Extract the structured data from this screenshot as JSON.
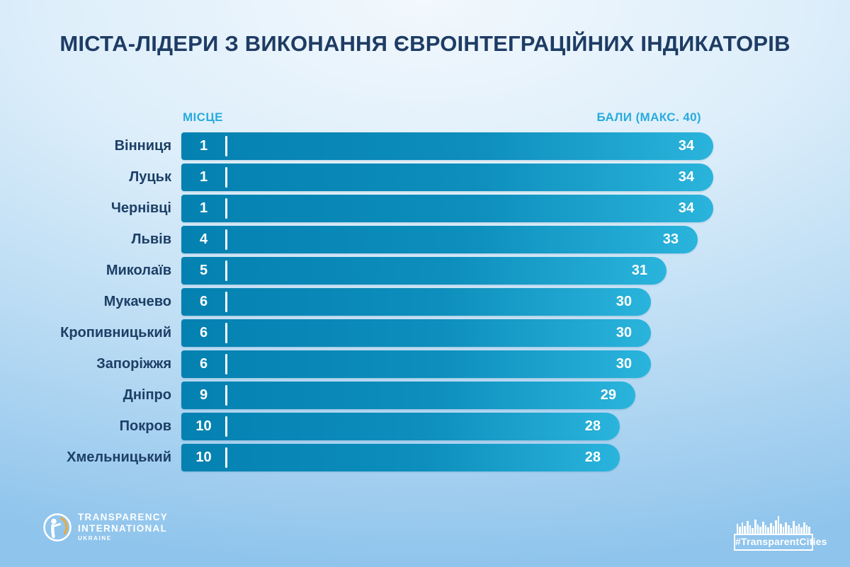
{
  "title": "МІСТА-ЛІДЕРИ З ВИКОНАННЯ ЄВРОІНТЕГРАЦІЙНИХ ІНДИКАТОРІВ",
  "chart_data": {
    "type": "bar",
    "orientation": "horizontal",
    "title": "МІСТА-ЛІДЕРИ З ВИКОНАННЯ ЄВРОІНТЕГРАЦІЙНИХ ІНДИКАТОРІВ",
    "columns": {
      "place": "МІСЦЕ",
      "score": "БАЛИ (МАКС. 40)"
    },
    "max_score": 40,
    "cities": [
      {
        "name": "Вінниця",
        "rank": "1",
        "score": 34
      },
      {
        "name": "Луцьк",
        "rank": "1",
        "score": 34
      },
      {
        "name": "Чернівці",
        "rank": "1",
        "score": 34
      },
      {
        "name": "Львів",
        "rank": "4",
        "score": 33
      },
      {
        "name": "Миколаїв",
        "rank": "5",
        "score": 31
      },
      {
        "name": "Мукачево",
        "rank": "6",
        "score": 30
      },
      {
        "name": "Кропивницький",
        "rank": "6",
        "score": 30
      },
      {
        "name": "Запоріжжя",
        "rank": "6",
        "score": 30
      },
      {
        "name": "Дніпро",
        "rank": "9",
        "score": 29
      },
      {
        "name": "Покров",
        "rank": "10",
        "score": 28
      },
      {
        "name": "Хмельницький",
        "rank": "10",
        "score": 28
      }
    ],
    "legend": null,
    "grid": false,
    "colors": {
      "bar_gradient_start": "#0481b1",
      "bar_gradient_end": "#2ab4dc",
      "header_accent": "#29abdd",
      "label_navy": "#1d3f66",
      "background_top": "#f2f8fd",
      "background_bottom": "#8fc4ec"
    }
  },
  "footer": {
    "logo_line1": "TRANSPARENCY",
    "logo_line2": "INTERNATIONAL",
    "logo_line3": "UKRAINE",
    "hashtag": "#TransparentCities"
  }
}
